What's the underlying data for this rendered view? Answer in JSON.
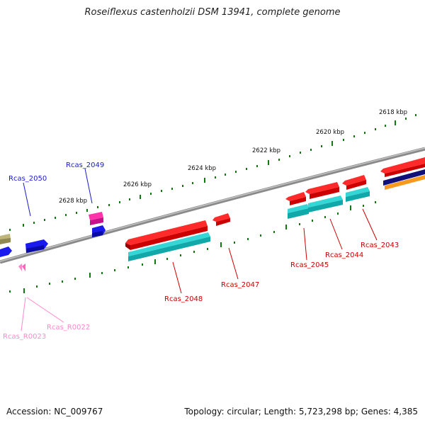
{
  "title": "Roseiflexus castenholzii DSM 13941, complete genome",
  "footer": {
    "accession": "Accession: NC_009767",
    "summary": "Topology: circular; Length: 5,723,298 bp; Genes: 4,385"
  },
  "ruler_labels": [
    "2618 kbp",
    "2620 kbp",
    "2622 kbp",
    "2624 kbp",
    "2626 kbp",
    "2628 kbp"
  ],
  "gene_labels": {
    "rcas_2050": "Rcas_2050",
    "rcas_2049": "Rcas_2049",
    "rcas_2048": "Rcas_2048",
    "rcas_2047": "Rcas_2047",
    "rcas_2045": "Rcas_2045",
    "rcas_2044": "Rcas_2044",
    "rcas_2043": "Rcas_2043",
    "rcas_r0022": "Rcas_R0022",
    "rcas_r0023": "Rcas_R0023"
  },
  "colors": {
    "forward_cds": "#ee0000",
    "forward_cds_alt": "#20c6c6",
    "reverse_cds": "#1a1aee",
    "magenta_cds": "#dd1199",
    "olive_cds": "#a8a060",
    "navy_cds": "#10107a",
    "orange_cds": "#f59a20",
    "rna": "#ff88cc",
    "tick": "#117711",
    "backbone": "#888888",
    "label_blue": "#1a1acc",
    "label_red": "#cc0000",
    "label_pink": "#ff88cc"
  }
}
